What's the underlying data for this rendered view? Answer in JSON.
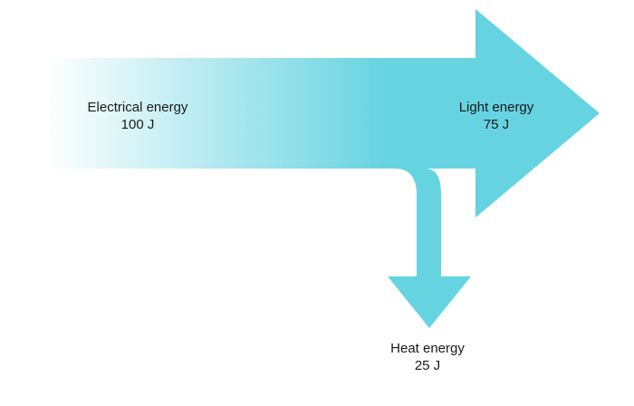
{
  "colors": {
    "arrow_main": "#66d3e1",
    "arrow_fade": "#ffffff",
    "text": "#1a1a1a",
    "background": "#ffffff"
  },
  "input": {
    "label": "Electrical energy",
    "value": "100 J"
  },
  "outputs": {
    "useful": {
      "label": "Light energy",
      "value": "75 J"
    },
    "wasted": {
      "label": "Heat energy",
      "value": "25 J"
    }
  }
}
